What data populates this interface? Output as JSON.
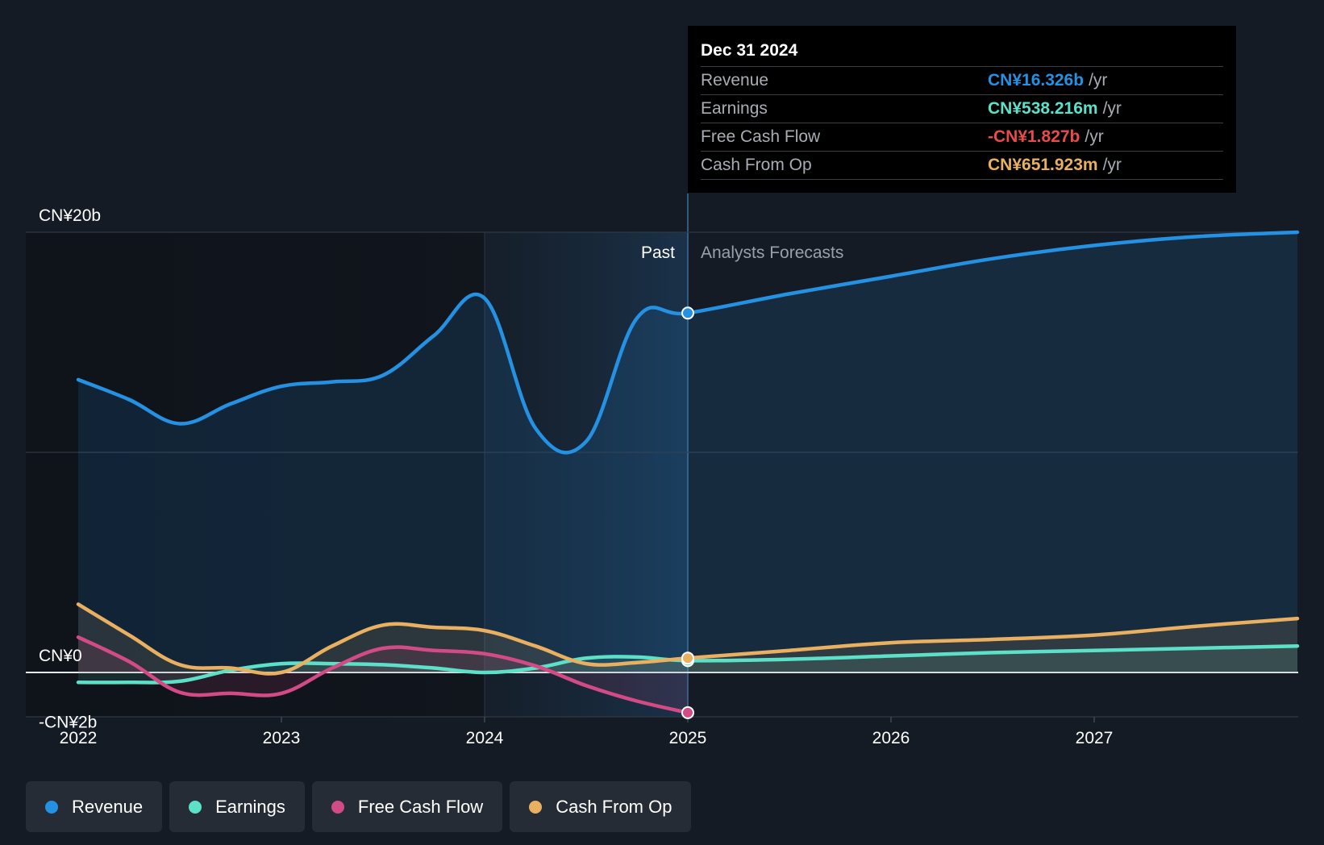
{
  "chart_data": {
    "type": "line",
    "y_unit": "CN¥b",
    "ylim": [
      -2,
      20
    ],
    "y_ticks": [
      {
        "value": 20,
        "label": "CN¥20b"
      },
      {
        "value": 0,
        "label": "CN¥0"
      },
      {
        "value": -2,
        "label": "-CN¥2b"
      }
    ],
    "xlim": [
      2021.75,
      2028.0
    ],
    "x_ticks": [
      {
        "value": 2022,
        "label": "2022"
      },
      {
        "value": 2023,
        "label": "2023"
      },
      {
        "value": 2024,
        "label": "2024"
      },
      {
        "value": 2025,
        "label": "2025"
      },
      {
        "value": 2026,
        "label": "2026"
      },
      {
        "value": 2027,
        "label": "2027"
      }
    ],
    "divider_x": 2025.0,
    "past_label": "Past",
    "forecast_label": "Analysts Forecasts",
    "grid": "horizontal",
    "series": [
      {
        "name": "Revenue",
        "color": "#2491e2",
        "points": [
          [
            2022.0,
            13.3
          ],
          [
            2022.25,
            12.4
          ],
          [
            2022.5,
            11.3
          ],
          [
            2022.75,
            12.2
          ],
          [
            2023.0,
            13.0
          ],
          [
            2023.25,
            13.2
          ],
          [
            2023.5,
            13.5
          ],
          [
            2023.75,
            15.3
          ],
          [
            2024.0,
            17.0
          ],
          [
            2024.25,
            11.1
          ],
          [
            2024.5,
            10.5
          ],
          [
            2024.75,
            16.1
          ],
          [
            2025.0,
            16.326
          ],
          [
            2025.5,
            17.2
          ],
          [
            2026.0,
            18.0
          ],
          [
            2026.5,
            18.8
          ],
          [
            2027.0,
            19.4
          ],
          [
            2027.5,
            19.8
          ],
          [
            2028.0,
            20.0
          ]
        ]
      },
      {
        "name": "Earnings",
        "color": "#5ce0c8",
        "points": [
          [
            2022.0,
            -0.45
          ],
          [
            2022.25,
            -0.45
          ],
          [
            2022.5,
            -0.4
          ],
          [
            2022.75,
            0.1
          ],
          [
            2023.0,
            0.4
          ],
          [
            2023.25,
            0.4
          ],
          [
            2023.5,
            0.35
          ],
          [
            2023.75,
            0.2
          ],
          [
            2024.0,
            0.0
          ],
          [
            2024.25,
            0.2
          ],
          [
            2024.5,
            0.65
          ],
          [
            2024.75,
            0.7
          ],
          [
            2025.0,
            0.538
          ],
          [
            2025.5,
            0.6
          ],
          [
            2026.0,
            0.75
          ],
          [
            2026.5,
            0.9
          ],
          [
            2027.0,
            1.0
          ],
          [
            2027.5,
            1.1
          ],
          [
            2028.0,
            1.2
          ]
        ]
      },
      {
        "name": "Free Cash Flow",
        "color": "#d24b86",
        "points": [
          [
            2022.0,
            1.6
          ],
          [
            2022.25,
            0.5
          ],
          [
            2022.5,
            -0.9
          ],
          [
            2022.75,
            -0.95
          ],
          [
            2023.0,
            -0.95
          ],
          [
            2023.25,
            0.2
          ],
          [
            2023.5,
            1.1
          ],
          [
            2023.75,
            1.0
          ],
          [
            2024.0,
            0.85
          ],
          [
            2024.25,
            0.3
          ],
          [
            2024.5,
            -0.6
          ],
          [
            2024.75,
            -1.3
          ],
          [
            2025.0,
            -1.827
          ]
        ]
      },
      {
        "name": "Cash From Op",
        "color": "#e8b060",
        "points": [
          [
            2022.0,
            3.1
          ],
          [
            2022.25,
            1.7
          ],
          [
            2022.5,
            0.35
          ],
          [
            2022.75,
            0.2
          ],
          [
            2023.0,
            0.0
          ],
          [
            2023.25,
            1.2
          ],
          [
            2023.5,
            2.15
          ],
          [
            2023.75,
            2.05
          ],
          [
            2024.0,
            1.9
          ],
          [
            2024.25,
            1.2
          ],
          [
            2024.5,
            0.4
          ],
          [
            2024.75,
            0.45
          ],
          [
            2025.0,
            0.652
          ],
          [
            2025.5,
            1.0
          ],
          [
            2026.0,
            1.35
          ],
          [
            2026.5,
            1.5
          ],
          [
            2027.0,
            1.7
          ],
          [
            2027.5,
            2.1
          ],
          [
            2028.0,
            2.45
          ]
        ]
      }
    ]
  },
  "tooltip": {
    "date": "Dec 31 2024",
    "rows": [
      {
        "label": "Revenue",
        "value": "CN¥16.326b",
        "unit": "/yr",
        "color": "#2491e2"
      },
      {
        "label": "Earnings",
        "value": "CN¥538.216m",
        "unit": "/yr",
        "color": "#5ce0c8"
      },
      {
        "label": "Free Cash Flow",
        "value": "-CN¥1.827b",
        "unit": "/yr",
        "color": "#e84b4b"
      },
      {
        "label": "Cash From Op",
        "value": "CN¥651.923m",
        "unit": "/yr",
        "color": "#e8b060"
      }
    ]
  },
  "legend": [
    {
      "label": "Revenue",
      "color": "#2491e2"
    },
    {
      "label": "Earnings",
      "color": "#5ce0c8"
    },
    {
      "label": "Free Cash Flow",
      "color": "#d24b86"
    },
    {
      "label": "Cash From Op",
      "color": "#e8b060"
    }
  ]
}
